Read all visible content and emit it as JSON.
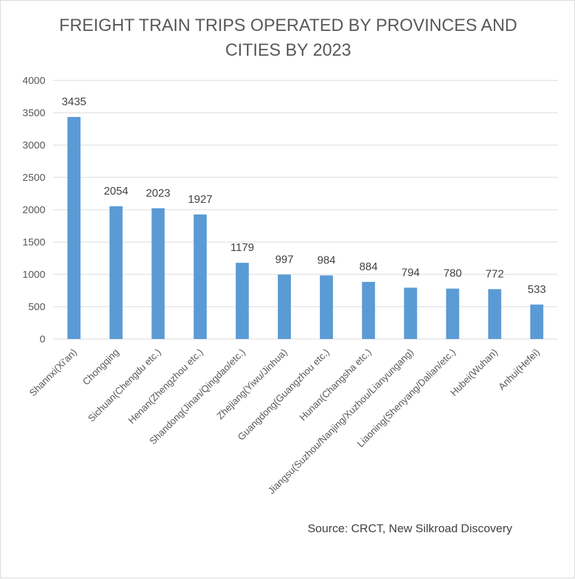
{
  "chart_data": {
    "type": "bar",
    "title_lines": [
      "FREIGHT TRAIN TRIPS OPERATED BY PROVINCES AND",
      "CITIES BY 2023"
    ],
    "categories": [
      "Shannxi(Xi'an)",
      "Chongqing",
      "Sichuan(Chengdu etc.)",
      "Henan(Zhengzhou etc.)",
      "Shandong(Jinan/Qingdao/etc.)",
      "Zhejiang(Yiwu/Jinhua)",
      "Guangdong(Guangzhou etc.)",
      "Hunan(Changsha etc.)",
      "Jiangsu(Suzhou/Nanjing/Xuzhou/Lianyungang)",
      "Liaoning(Shenyang/Dalian/etc.)",
      "Hubei(Wuhan)",
      "Anhui(Hefei)"
    ],
    "values": [
      3435,
      2054,
      2023,
      1927,
      1179,
      997,
      984,
      884,
      794,
      780,
      772,
      533
    ],
    "data_labels": [
      "3435",
      "2054",
      "2023",
      "1927",
      "1179",
      "997",
      "984",
      "884",
      "794",
      "780",
      "772",
      "533"
    ],
    "ylim": [
      0,
      4000
    ],
    "yticks": [
      0,
      500,
      1000,
      1500,
      2000,
      2500,
      3000,
      3500,
      4000
    ],
    "ytick_labels": [
      "0",
      "500",
      "1000",
      "1500",
      "2000",
      "2500",
      "3000",
      "3500",
      "4000"
    ],
    "grid": true,
    "bar_color": "#5b9bd5",
    "grid_color": "#d9d9d9",
    "source": "Source: CRCT, New Silkroad Discovery"
  }
}
